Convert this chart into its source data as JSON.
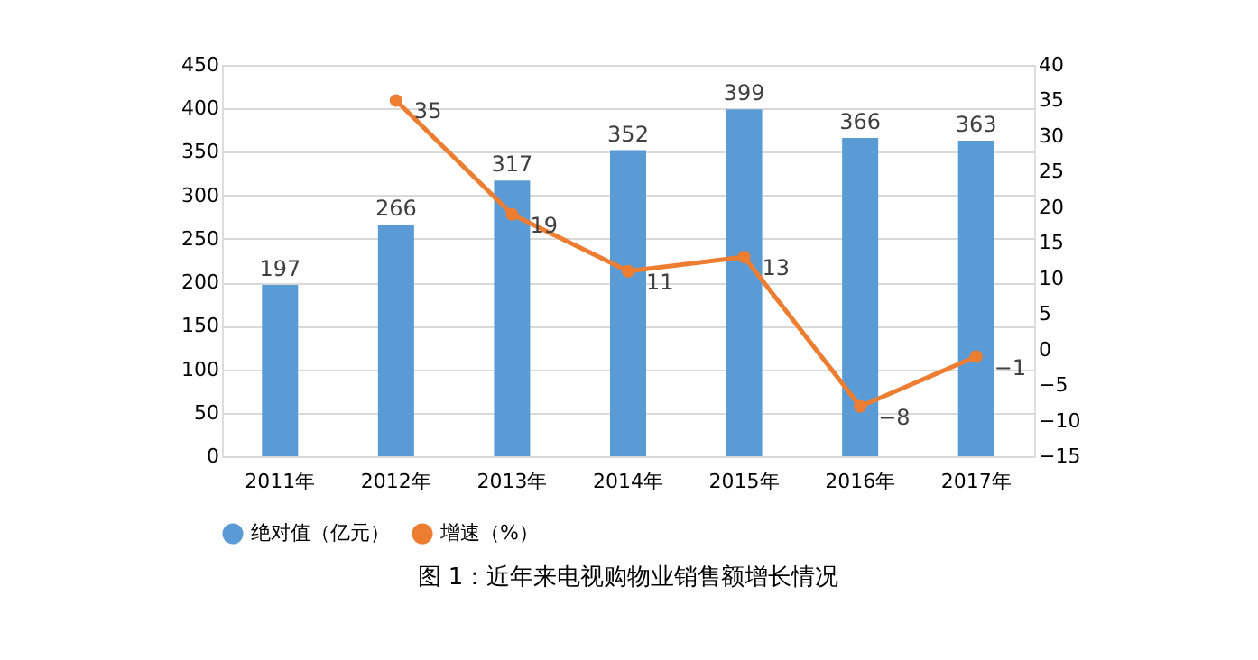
{
  "chart_data": {
    "type": "bar",
    "categories": [
      "2011年",
      "2012年",
      "2013年",
      "2014年",
      "2015年",
      "2016年",
      "2017年"
    ],
    "series": [
      {
        "name": "绝对值（亿元）",
        "color": "#5b9bd5",
        "values": [
          197,
          266,
          317,
          352,
          399,
          366,
          363
        ]
      },
      {
        "name": "增速（%）",
        "type": "line",
        "axis": "y2",
        "color": "#ed7d31",
        "values": [
          null,
          35,
          19,
          11,
          13,
          -8,
          -1
        ]
      }
    ],
    "ylim": [
      0,
      450
    ],
    "yticks": [
      0,
      50,
      100,
      150,
      200,
      250,
      300,
      350,
      400,
      450
    ],
    "y2lim": [
      -15,
      40
    ],
    "y2ticks": [
      -15,
      -10,
      -5,
      0,
      5,
      10,
      15,
      20,
      25,
      30,
      35,
      40
    ],
    "grid": "y",
    "legend": "bottom",
    "marker": "circle",
    "data_labels": true,
    "annotations": [
      "图 1：近年来电视购物业销售额增长情况"
    ]
  }
}
